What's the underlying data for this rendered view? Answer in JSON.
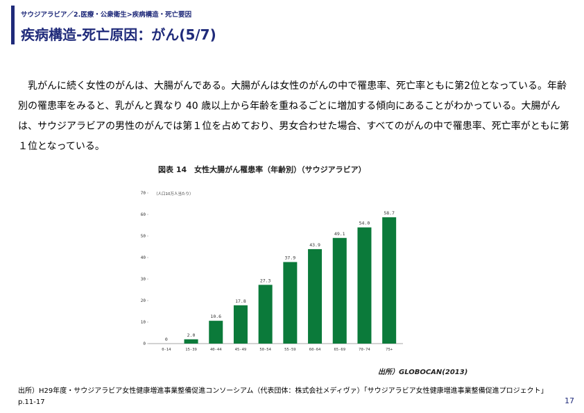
{
  "header": {
    "breadcrumb": "サウジアラビア／2.医療・公衆衛生>疾病構造・死亡要因",
    "title": "疾病構造-死亡原因：がん(5/7)"
  },
  "body": {
    "paragraph": "乳がんに続く女性のがんは、大腸がんである。大腸がんは女性のがんの中で罹患率、死亡率ともに第2位となっている。年齢別の罹患率をみると、乳がんと異なり 40 歳以上から年齢を重ねるごとに増加する傾向にあることがわかっている。大腸がんは、サウジアラビアの男性のがんでは第１位を占めており、男女合わせた場合、すべてのがんの中で罹患率、死亡率がともに第１位となっている。"
  },
  "figure": {
    "title": "図表 14　女性大腸がん罹患率（年齢別）（サウジアラビア）",
    "source": "出所）GLOBOCAN(2013)"
  },
  "chart_data": {
    "type": "bar",
    "unit_label": "（人口10万人当たり）",
    "categories": [
      "0-14",
      "15-39",
      "40-44",
      "45-49",
      "50-54",
      "55-59",
      "60-64",
      "65-69",
      "70-74",
      "75+"
    ],
    "values": [
      0,
      2.0,
      10.6,
      17.8,
      27.3,
      37.9,
      43.9,
      49.1,
      54.0,
      58.7
    ],
    "value_labels": [
      "0",
      "2.0",
      "10.6",
      "17.8",
      "27.3",
      "37.9",
      "43.9",
      "49.1",
      "54.0",
      "58.7"
    ],
    "yticks": [
      "0",
      "10",
      "20",
      "30",
      "40",
      "50",
      "60",
      "70"
    ],
    "ylim": [
      0,
      70
    ],
    "bar_color": "#0b7a3a",
    "grid": false,
    "legend": "none"
  },
  "footer": {
    "note": "出所）H29年度・サウジアラビア女性健康増進事業整備促進コンソーシアム（代表団体：株式会社メディヴァ）「サウジアラビア女性健康増進事業整備促進プロジェクト」p.11-17",
    "page_number": "17"
  },
  "colors": {
    "accent": "#1f2a7a",
    "bar": "#0b7a3a"
  }
}
